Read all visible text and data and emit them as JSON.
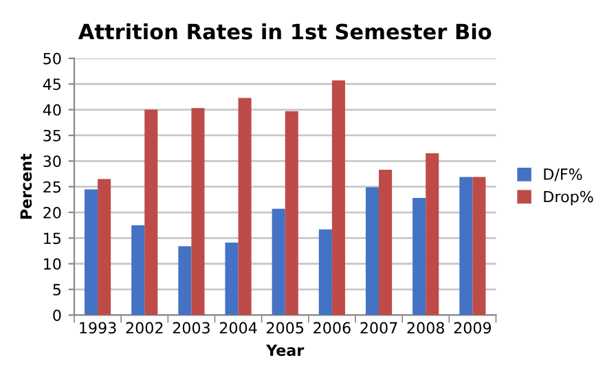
{
  "chart_data": {
    "type": "bar",
    "title": "Attrition Rates in 1st Semester Bio",
    "xlabel": "Year",
    "ylabel": "Percent",
    "categories": [
      "1993",
      "2002",
      "2003",
      "2004",
      "2005",
      "2006",
      "2007",
      "2008",
      "2009"
    ],
    "series": [
      {
        "name": "D/F%",
        "color": "#4472c4",
        "values": [
          24.5,
          17.5,
          13.4,
          14.1,
          20.7,
          16.7,
          24.9,
          22.8,
          26.9
        ]
      },
      {
        "name": "Drop%",
        "color": "#be4b48",
        "values": [
          26.5,
          40,
          40.3,
          42.3,
          39.7,
          45.7,
          28.3,
          31.5,
          26.9
        ]
      }
    ],
    "ylim": [
      0,
      50
    ],
    "yticks": [
      0,
      5,
      10,
      15,
      20,
      25,
      30,
      35,
      40,
      45,
      50
    ],
    "grid": "y",
    "legend": "right"
  }
}
